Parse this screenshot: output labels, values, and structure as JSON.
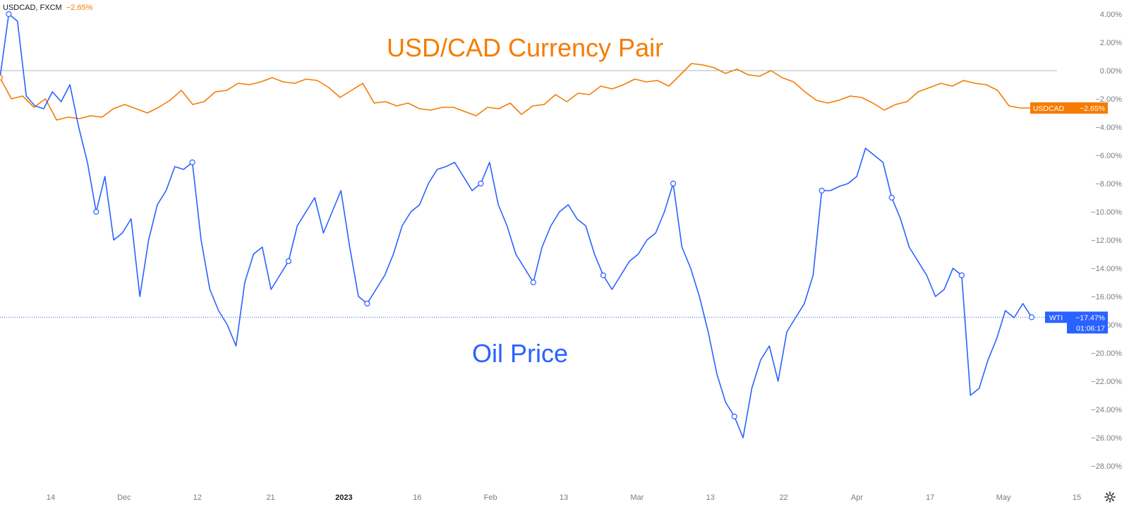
{
  "header": {
    "symbol": "USDCAD, FXCM",
    "change": "−2.65%"
  },
  "overlays": {
    "usdcad_label": "USD/CAD Currency Pair",
    "oil_label": "Oil Price"
  },
  "colors": {
    "usdcad": "#f57c00",
    "oil": "#2962ff",
    "axis_text": "#787b86",
    "zero_line": "#b2b5be"
  },
  "icons": {
    "settings": "gear-icon"
  },
  "chart_data": {
    "type": "line",
    "y_unit": "percent",
    "ylim": [
      -29,
      5
    ],
    "y_ticks": [
      "4.00%",
      "2.00%",
      "0.00%",
      "−2.00%",
      "−4.00%",
      "−6.00%",
      "−8.00%",
      "−10.00%",
      "−12.00%",
      "−14.00%",
      "−16.00%",
      "−18.00%",
      "−20.00%",
      "−22.00%",
      "−24.00%",
      "−26.00%",
      "−28.00%"
    ],
    "y_tick_values": [
      4,
      2,
      0,
      -2,
      -4,
      -6,
      -8,
      -10,
      -12,
      -14,
      -16,
      -18,
      -20,
      -22,
      -24,
      -26,
      -28
    ],
    "x_tick_labels": [
      "14",
      "Dec",
      "12",
      "21",
      "2023",
      "16",
      "Feb",
      "13",
      "Mar",
      "13",
      "22",
      "Apr",
      "17",
      "May",
      "15"
    ],
    "x_tick_bold": [
      "2023"
    ],
    "grid": false,
    "zero_line": true,
    "series": [
      {
        "name": "USDCAD",
        "axis_label": "USDCAD",
        "last_value_label": "−2.65%",
        "last_value": -2.65,
        "values": [
          -0.5,
          -2.0,
          -1.8,
          -2.6,
          -2.0,
          -3.5,
          -3.3,
          -3.4,
          -3.2,
          -3.3,
          -2.7,
          -2.4,
          -2.7,
          -3.0,
          -2.6,
          -2.1,
          -1.4,
          -2.4,
          -2.2,
          -1.5,
          -1.4,
          -0.9,
          -1.0,
          -0.8,
          -0.5,
          -0.8,
          -0.9,
          -0.6,
          -0.7,
          -1.2,
          -1.9,
          -1.4,
          -0.9,
          -2.3,
          -2.2,
          -2.5,
          -2.3,
          -2.7,
          -2.8,
          -2.6,
          -2.6,
          -2.9,
          -3.2,
          -2.6,
          -2.7,
          -2.3,
          -3.1,
          -2.5,
          -2.4,
          -1.7,
          -2.2,
          -1.6,
          -1.7,
          -1.1,
          -1.3,
          -1.0,
          -0.6,
          -0.8,
          -0.7,
          -1.1,
          -0.3,
          0.5,
          0.4,
          0.2,
          -0.2,
          0.1,
          -0.3,
          -0.4,
          0.0,
          -0.5,
          -0.8,
          -1.5,
          -2.1,
          -2.3,
          -2.1,
          -1.8,
          -1.9,
          -2.3,
          -2.8,
          -2.4,
          -2.2,
          -1.5,
          -1.2,
          -0.9,
          -1.1,
          -0.7,
          -0.9,
          -1.0,
          -1.4,
          -2.5,
          -2.65,
          -2.65
        ]
      },
      {
        "name": "WTI",
        "axis_label": "WTI",
        "last_value_label": "−17.47%",
        "countdown": "01:06:17",
        "last_value": -17.47,
        "values": [
          -0.5,
          4.0,
          3.5,
          -1.8,
          -2.5,
          -2.7,
          -1.5,
          -2.2,
          -1.0,
          -4.0,
          -6.5,
          -10.0,
          -7.5,
          -12.0,
          -11.5,
          -10.5,
          -16.0,
          -12.0,
          -9.5,
          -8.5,
          -6.8,
          -7.0,
          -6.5,
          -12.0,
          -15.5,
          -17.0,
          -18.0,
          -19.5,
          -15.0,
          -13.0,
          -12.5,
          -15.5,
          -14.5,
          -13.5,
          -11.0,
          -10.0,
          -9.0,
          -11.5,
          -10.0,
          -8.5,
          -12.5,
          -16.0,
          -16.5,
          -15.5,
          -14.5,
          -13.0,
          -11.0,
          -10.0,
          -9.5,
          -8.0,
          -7.0,
          -6.8,
          -6.5,
          -7.5,
          -8.5,
          -8.0,
          -6.5,
          -9.5,
          -11.0,
          -13.0,
          -14.0,
          -15.0,
          -12.5,
          -11.0,
          -10.0,
          -9.5,
          -10.5,
          -11.0,
          -13.0,
          -14.5,
          -15.5,
          -14.5,
          -13.5,
          -13.0,
          -12.0,
          -11.5,
          -10.0,
          -8.0,
          -12.5,
          -14.0,
          -16.0,
          -18.5,
          -21.5,
          -23.5,
          -24.5,
          -26.0,
          -22.5,
          -20.5,
          -19.5,
          -22.0,
          -18.5,
          -17.5,
          -16.5,
          -14.5,
          -8.5,
          -8.5,
          -8.2,
          -8.0,
          -7.5,
          -5.5,
          -6.0,
          -6.5,
          -9.0,
          -10.5,
          -12.5,
          -13.5,
          -14.5,
          -16.0,
          -15.5,
          -14.0,
          -14.5,
          -23.0,
          -22.5,
          -20.5,
          -19.0,
          -17.0,
          -17.5,
          -16.5,
          -17.47
        ]
      }
    ],
    "annotations_markers": [
      {
        "series": "USDCAD",
        "x_index": 0
      },
      {
        "series": "WTI",
        "x_index": 1
      },
      {
        "series": "WTI",
        "x_index": 11
      },
      {
        "series": "WTI",
        "x_index": 22
      },
      {
        "series": "WTI",
        "x_index": 33
      },
      {
        "series": "WTI",
        "x_index": 42
      },
      {
        "series": "WTI",
        "x_index": 55
      },
      {
        "series": "WTI",
        "x_index": 61
      },
      {
        "series": "WTI",
        "x_index": 69
      },
      {
        "series": "WTI",
        "x_index": 77
      },
      {
        "series": "WTI",
        "x_index": 84
      },
      {
        "series": "WTI",
        "x_index": 94
      },
      {
        "series": "WTI",
        "x_index": 102
      },
      {
        "series": "WTI",
        "x_index": 110
      },
      {
        "series": "WTI",
        "x_index": 118
      }
    ]
  }
}
